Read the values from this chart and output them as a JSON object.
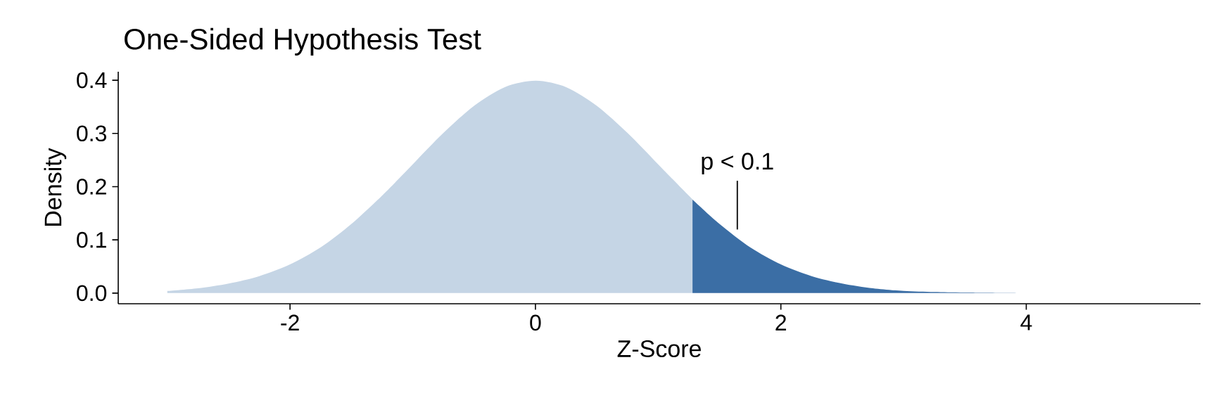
{
  "chart_data": {
    "type": "area",
    "title": "One-Sided Hypothesis Test",
    "xlabel": "Z-Score",
    "ylabel": "Density",
    "series": [
      {
        "color": "#c5d5e5",
        "x": [
          -3,
          -2.75,
          -2.5,
          -2.25,
          -2,
          -1.75,
          -1.5,
          -1.25,
          -1,
          -0.75,
          -0.5,
          -0.25,
          0,
          0.25,
          0.5,
          0.75,
          1,
          1.25,
          1.28
        ],
        "values": [
          0.004,
          0.009,
          0.018,
          0.032,
          0.054,
          0.086,
          0.13,
          0.183,
          0.242,
          0.301,
          0.352,
          0.387,
          0.399,
          0.387,
          0.352,
          0.301,
          0.242,
          0.183,
          0.176
        ]
      },
      {
        "color": "#3b6ea5",
        "x": [
          1.28,
          1.5,
          1.75,
          2,
          2.25,
          2.5,
          2.75,
          3,
          3.25,
          3.5,
          4
        ],
        "values": [
          0.176,
          0.13,
          0.086,
          0.054,
          0.032,
          0.018,
          0.009,
          0.004,
          0.002,
          0.001,
          0
        ]
      }
    ],
    "annotations": [
      "p < 0.1"
    ],
    "xlim": [
      -3.4,
      5.42
    ],
    "ylim": [
      -0.02,
      0.416
    ],
    "xticks": [
      -2,
      0,
      2,
      4
    ],
    "yticks": [
      {
        "value": 0,
        "label": "0.0"
      },
      0.1,
      0.2,
      0.3,
      0.4
    ]
  }
}
